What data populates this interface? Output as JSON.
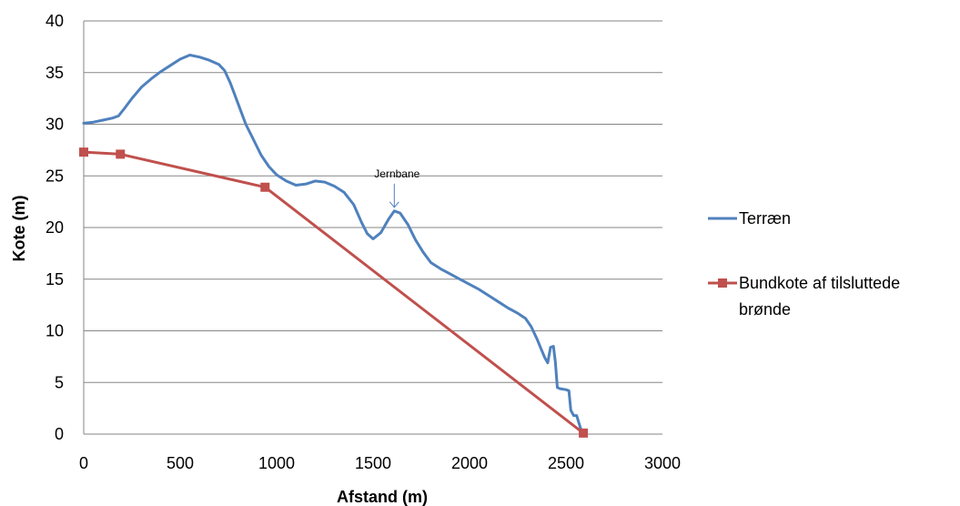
{
  "chart_data": {
    "type": "line",
    "xlabel": "Afstand (m)",
    "ylabel": "Kote (m)",
    "xlim": [
      0,
      3000
    ],
    "ylim": [
      0,
      40
    ],
    "x_ticks": [
      0,
      500,
      1000,
      1500,
      2000,
      2500,
      3000
    ],
    "y_ticks": [
      0,
      5,
      10,
      15,
      20,
      25,
      30,
      35,
      40
    ],
    "grid": "horizontal",
    "legend_position": "right",
    "annotation": {
      "text": "Jernbane",
      "x": 1610,
      "y": 21.6
    },
    "series": [
      {
        "name": "Terræn",
        "color": "#4f81bd",
        "marker": "none",
        "points": [
          [
            0,
            30.1
          ],
          [
            50,
            30.2
          ],
          [
            100,
            30.4
          ],
          [
            150,
            30.6
          ],
          [
            180,
            30.8
          ],
          [
            210,
            31.5
          ],
          [
            250,
            32.5
          ],
          [
            300,
            33.6
          ],
          [
            350,
            34.4
          ],
          [
            400,
            35.1
          ],
          [
            450,
            35.7
          ],
          [
            500,
            36.3
          ],
          [
            550,
            36.7
          ],
          [
            600,
            36.5
          ],
          [
            650,
            36.2
          ],
          [
            700,
            35.8
          ],
          [
            730,
            35.2
          ],
          [
            760,
            34.0
          ],
          [
            800,
            32.0
          ],
          [
            840,
            30.0
          ],
          [
            880,
            28.5
          ],
          [
            920,
            27.0
          ],
          [
            960,
            25.9
          ],
          [
            1000,
            25.1
          ],
          [
            1050,
            24.5
          ],
          [
            1100,
            24.1
          ],
          [
            1150,
            24.2
          ],
          [
            1200,
            24.5
          ],
          [
            1250,
            24.4
          ],
          [
            1300,
            24.0
          ],
          [
            1350,
            23.4
          ],
          [
            1400,
            22.2
          ],
          [
            1440,
            20.5
          ],
          [
            1470,
            19.4
          ],
          [
            1500,
            18.9
          ],
          [
            1540,
            19.5
          ],
          [
            1580,
            20.8
          ],
          [
            1610,
            21.6
          ],
          [
            1640,
            21.4
          ],
          [
            1680,
            20.3
          ],
          [
            1720,
            18.8
          ],
          [
            1760,
            17.6
          ],
          [
            1800,
            16.6
          ],
          [
            1850,
            16.0
          ],
          [
            1900,
            15.5
          ],
          [
            1950,
            15.0
          ],
          [
            2000,
            14.5
          ],
          [
            2050,
            14.0
          ],
          [
            2100,
            13.4
          ],
          [
            2150,
            12.8
          ],
          [
            2200,
            12.2
          ],
          [
            2250,
            11.7
          ],
          [
            2290,
            11.2
          ],
          [
            2320,
            10.4
          ],
          [
            2350,
            9.2
          ],
          [
            2370,
            8.3
          ],
          [
            2390,
            7.4
          ],
          [
            2405,
            6.9
          ],
          [
            2420,
            8.4
          ],
          [
            2435,
            8.5
          ],
          [
            2445,
            7.0
          ],
          [
            2455,
            4.5
          ],
          [
            2470,
            4.4
          ],
          [
            2500,
            4.3
          ],
          [
            2515,
            4.2
          ],
          [
            2525,
            2.3
          ],
          [
            2540,
            1.8
          ],
          [
            2555,
            1.8
          ],
          [
            2565,
            1.2
          ],
          [
            2575,
            0.6
          ],
          [
            2585,
            0.1
          ]
        ]
      },
      {
        "name": "Bundkote af tilsluttede brønde",
        "color": "#c0504d",
        "marker": "square",
        "points": [
          [
            0,
            27.3
          ],
          [
            190,
            27.1
          ],
          [
            940,
            23.9
          ],
          [
            2590,
            0.1
          ]
        ]
      }
    ]
  },
  "legend": {
    "terrain_label": "Terræn",
    "wells_line1": "Bundkote af tilsluttede",
    "wells_line2": "brønde"
  }
}
